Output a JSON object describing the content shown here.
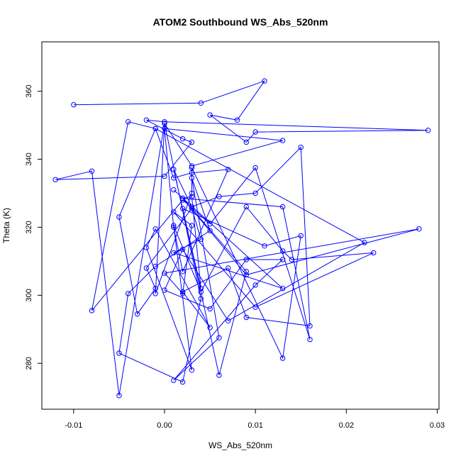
{
  "chart_data": {
    "type": "line",
    "title": "ATOM2 Southbound WS_Abs_520nm",
    "xlabel": "WS_Abs_520nm",
    "ylabel": "Theta (K)",
    "xlim": [
      -0.0135,
      0.0302
    ],
    "ylim": [
      266.5,
      374.5
    ],
    "xticks": [
      -0.01,
      0.0,
      0.01,
      0.02,
      0.03
    ],
    "xtick_labels": [
      "-0.01",
      "0.00",
      "0.01",
      "0.02",
      "0.03"
    ],
    "yticks": [
      280,
      300,
      320,
      340,
      360
    ],
    "ytick_labels": [
      "280",
      "300",
      "320",
      "340",
      "360"
    ],
    "grid": false,
    "legend": "none",
    "color": "#0000ff",
    "marker": "open-circle",
    "series": [
      {
        "x": [
          -0.01,
          0.004,
          0.011,
          0.008,
          0.005,
          0.009,
          0.01,
          0.029,
          0.0,
          -0.002,
          0.002,
          0.003,
          0.0,
          -0.012,
          -0.008,
          -0.005,
          0.0,
          0.003,
          0.013,
          0.0,
          0.001,
          0.002,
          0.007,
          0.003,
          0.001,
          -0.001,
          -0.004,
          -0.008,
          0.002,
          0.005,
          0.01,
          0.016,
          0.013,
          0.002,
          0.003,
          0.004,
          0.001,
          0.003,
          0.006,
          0.01,
          0.015,
          0.016,
          0.009,
          0.007,
          0.002,
          0.005,
          -0.001,
          -0.002,
          0.003,
          0.001,
          0.004,
          0.009,
          0.013,
          0.014,
          0.023,
          0.01,
          0.001,
          0.003,
          0.002,
          0.0,
          0.028,
          0.009,
          0.002,
          0.009,
          0.006,
          0.002,
          0.011,
          0.015,
          0.013,
          0.003,
          0.003,
          -0.001,
          0.0,
          0.004,
          0.002,
          -0.005,
          -0.004,
          -0.001,
          0.005,
          0.003,
          0.006,
          0.001,
          0.01,
          0.013,
          0.009,
          0.005,
          0.0,
          0.002,
          0.007,
          0.022,
          -0.001,
          -0.005,
          -0.003,
          -0.001,
          -0.002,
          0.003,
          0.004,
          0.001,
          0.013,
          0.001
        ],
        "y": [
          356,
          356.5,
          363,
          351.5,
          353,
          345,
          348,
          348.5,
          351,
          351.5,
          346,
          345,
          335,
          334,
          336.5,
          270.5,
          350.5,
          338,
          345.5,
          349,
          320,
          307,
          337,
          336,
          334.5,
          349,
          351,
          295.5,
          328,
          321,
          337.5,
          287,
          326,
          328.5,
          329,
          302,
          337,
          326,
          329,
          330,
          343.5,
          291,
          293.5,
          308,
          301,
          290.5,
          319.5,
          314,
          278,
          320.5,
          301,
          326,
          313,
          310.5,
          312.5,
          296.5,
          324.5,
          320.5,
          300.5,
          306.5,
          319.5,
          306,
          328.5,
          307,
          276.5,
          325.5,
          314.5,
          317.5,
          281.5,
          337.5,
          330,
          300.5,
          350.5,
          299,
          274.5,
          283,
          300.5,
          308.5,
          319,
          334.5,
          287.5,
          275,
          303,
          310.5,
          310.5,
          296,
          301.5,
          313.5,
          292.5,
          315.5,
          349,
          323,
          294.5,
          302,
          308,
          325.5,
          316.5,
          312.5,
          302,
          331
        ]
      }
    ]
  }
}
